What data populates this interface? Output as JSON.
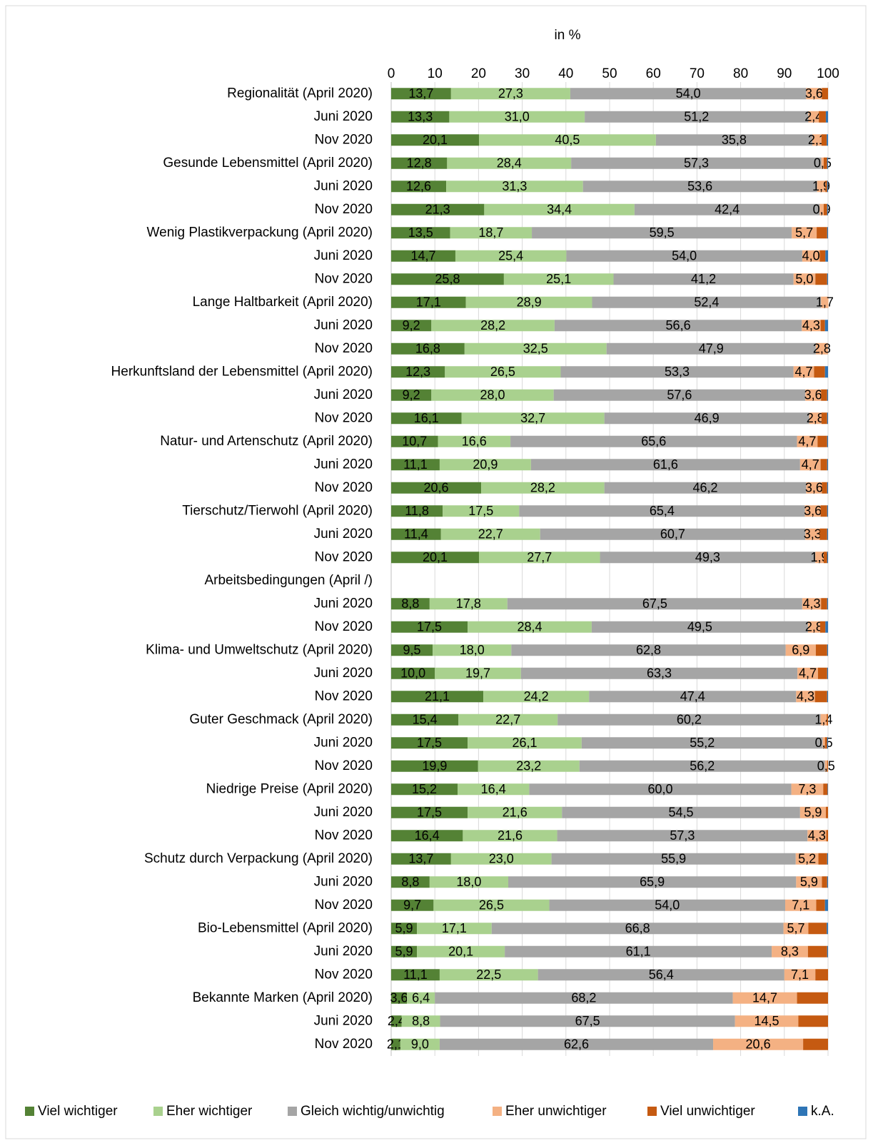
{
  "chart_data": {
    "type": "stacked-bar-horizontal",
    "axis_title": "in %",
    "categories": [
      "Regionalität (April 2020)",
      "Juni 2020",
      "Nov 2020",
      "Gesunde Lebensmittel (April 2020)",
      "Juni 2020",
      "Nov 2020",
      "Wenig Plastikverpackung (April 2020)",
      "Juni 2020",
      "Nov 2020",
      "Lange Haltbarkeit (April 2020)",
      "Juni 2020",
      "Nov 2020",
      "Herkunftsland der Lebensmittel (April 2020)",
      "Juni 2020",
      "Nov 2020",
      "Natur- und Artenschutz (April 2020)",
      "Juni 2020",
      "Nov 2020",
      "Tierschutz/Tierwohl (April 2020)",
      "Juni 2020",
      "Nov 2020",
      "Arbeitsbedingungen (April /)",
      "Juni 2020",
      "Nov 2020",
      "Klima- und Umweltschutz (April 2020)",
      "Juni 2020",
      "Nov 2020",
      "Guter Geschmack (April 2020)",
      "Juni 2020",
      "Nov 2020",
      "Niedrige Preise (April 2020)",
      "Juni 2020",
      "Nov 2020",
      "Schutz durch Verpackung (April 2020)",
      "Juni 2020",
      "Nov 2020",
      "Bio-Lebensmittel (April 2020)",
      "Juni 2020",
      "Nov 2020",
      "Bekannte Marken (April 2020)",
      "Juni 2020",
      "Nov 2020"
    ],
    "series": [
      {
        "name": "Viel wichtiger",
        "color": "#548235",
        "values": [
          13.7,
          13.3,
          20.1,
          12.8,
          12.6,
          21.3,
          13.5,
          14.7,
          25.8,
          17.1,
          9.2,
          16.8,
          12.3,
          9.2,
          16.1,
          10.7,
          11.1,
          20.6,
          11.8,
          11.4,
          20.1,
          null,
          8.8,
          17.5,
          9.5,
          10.0,
          21.1,
          15.4,
          17.5,
          19.9,
          15.2,
          17.5,
          16.4,
          13.7,
          8.8,
          9.7,
          5.9,
          5.9,
          11.1,
          3.6,
          2.4,
          2.1
        ],
        "value_labels": [
          "13,7",
          "13,3",
          "20,1",
          "12,8",
          "12,6",
          "21,3",
          "13,5",
          "14,7",
          "25,8",
          "17,1",
          "9,2",
          "16,8",
          "12,3",
          "9,2",
          "16,1",
          "10,7",
          "11,1",
          "20,6",
          "11,8",
          "11,4",
          "20,1",
          null,
          "8,8",
          "17,5",
          "9,5",
          "10,0",
          "21,1",
          "15,4",
          "17,5",
          "19,9",
          "15,2",
          "17,5",
          "16,4",
          "13,7",
          "8,8",
          "9,7",
          "5,9",
          "5,9",
          "11,1",
          "3,6",
          "2,4",
          "2,1"
        ]
      },
      {
        "name": "Eher wichtiger",
        "color": "#a9d18e",
        "values": [
          27.3,
          31.0,
          40.5,
          28.4,
          31.3,
          34.4,
          18.7,
          25.4,
          25.1,
          28.9,
          28.2,
          32.5,
          26.5,
          28.0,
          32.7,
          16.6,
          20.9,
          28.2,
          17.5,
          22.7,
          27.7,
          null,
          17.8,
          28.4,
          18.0,
          19.7,
          24.2,
          22.7,
          26.1,
          23.2,
          16.4,
          21.6,
          21.6,
          23.0,
          18.0,
          26.5,
          17.1,
          20.1,
          22.5,
          6.4,
          8.8,
          9.0
        ],
        "value_labels": [
          "27,3",
          "31,0",
          "40,5",
          "28,4",
          "31,3",
          "34,4",
          "18,7",
          "25,4",
          "25,1",
          "28,9",
          "28,2",
          "32,5",
          "26,5",
          "28,0",
          "32,7",
          "16,6",
          "20,9",
          "28,2",
          "17,5",
          "22,7",
          "27,7",
          null,
          "17,8",
          "28,4",
          "18,0",
          "19,7",
          "24,2",
          "22,7",
          "26,1",
          "23,2",
          "16,4",
          "21,6",
          "21,6",
          "23,0",
          "18,0",
          "26,5",
          "17,1",
          "20,1",
          "22,5",
          "6,4",
          "8,8",
          "9,0"
        ]
      },
      {
        "name": "Gleich wichtig/unwichtig",
        "color": "#a5a5a5",
        "values": [
          54.0,
          51.2,
          35.8,
          57.3,
          53.6,
          42.4,
          59.5,
          54.0,
          41.2,
          52.4,
          56.6,
          47.9,
          53.3,
          57.6,
          46.9,
          65.6,
          61.6,
          46.2,
          65.4,
          60.7,
          49.3,
          null,
          67.5,
          49.5,
          62.8,
          63.3,
          47.4,
          60.2,
          55.2,
          56.2,
          60.0,
          54.5,
          57.3,
          55.9,
          65.9,
          54.0,
          66.8,
          61.1,
          56.4,
          68.2,
          67.5,
          62.6
        ],
        "value_labels": [
          "54,0",
          "51,2",
          "35,8",
          "57,3",
          "53,6",
          "42,4",
          "59,5",
          "54,0",
          "41,2",
          "52,4",
          "56,6",
          "47,9",
          "53,3",
          "57,6",
          "46,9",
          "65,6",
          "61,6",
          "46,2",
          "65,4",
          "60,7",
          "49,3",
          null,
          "67,5",
          "49,5",
          "62,8",
          "63,3",
          "47,4",
          "60,2",
          "55,2",
          "56,2",
          "60,0",
          "54,5",
          "57,3",
          "55,9",
          "65,9",
          "54,0",
          "66,8",
          "61,1",
          "56,4",
          "68,2",
          "67,5",
          "62,6"
        ]
      },
      {
        "name": "Eher unwichtiger",
        "color": "#f4b183",
        "values": [
          3.6,
          2.4,
          2.1,
          0.5,
          1.9,
          0.9,
          5.7,
          4.0,
          5.0,
          1.7,
          4.3,
          2.8,
          4.7,
          3.6,
          2.8,
          4.7,
          4.7,
          3.6,
          3.6,
          3.3,
          1.9,
          null,
          4.3,
          2.8,
          6.9,
          4.7,
          4.3,
          1.4,
          0.5,
          0.5,
          7.3,
          5.9,
          4.3,
          5.2,
          5.9,
          7.1,
          5.7,
          8.3,
          7.1,
          14.7,
          14.5,
          20.6
        ],
        "value_labels": [
          "3,6",
          "2,4",
          "2,1",
          "0,5",
          "1,9",
          "0,9",
          "5,7",
          "4,0",
          "5,0",
          "1,7",
          "4,3",
          "2,8",
          "4,7",
          "3,6",
          "2,8",
          "4,7",
          "4,7",
          "3,6",
          "3,6",
          "3,3",
          "1,9",
          null,
          "4,3",
          "2,8",
          "6,9",
          "4,7",
          "4,3",
          "1,4",
          "0,5",
          "0,5",
          "7,3",
          "5,9",
          "4,3",
          "5,2",
          "5,9",
          "7,1",
          "5,7",
          "8,3",
          "7,1",
          "14,7",
          "14,5",
          "20,6"
        ]
      },
      {
        "name": "Viel unwichtiger",
        "color": "#c55a11",
        "values": [
          1.4,
          1.6,
          1.2,
          0.8,
          0.4,
          0.8,
          2.4,
          1.3,
          2.7,
          0,
          1.0,
          0,
          2.5,
          1.4,
          1.3,
          2.2,
          1.5,
          1.2,
          1.5,
          1.7,
          0.8,
          null,
          1.4,
          1.2,
          2.6,
          2.1,
          2.8,
          0.3,
          0.5,
          0.2,
          1.0,
          0.5,
          0.4,
          2.0,
          1.2,
          2.0,
          4.2,
          4.4,
          2.9,
          7.1,
          6.8,
          5.7
        ]
      },
      {
        "name": "k.A.",
        "color": "#2e75b6",
        "values": [
          0,
          0.5,
          0.3,
          0.2,
          0.2,
          0.2,
          0.2,
          0.6,
          0.2,
          0,
          0.7,
          0,
          0.7,
          0.2,
          0.2,
          0.2,
          0.2,
          0.2,
          0.2,
          0.2,
          0.2,
          null,
          0.2,
          0.6,
          0.2,
          0.2,
          0.2,
          0,
          0.2,
          0,
          0.1,
          0,
          0,
          0.2,
          0.2,
          0.7,
          0.3,
          0.2,
          0,
          0,
          0,
          0
        ]
      }
    ],
    "xlim": [
      0,
      100
    ],
    "xticks": [
      0,
      10,
      20,
      30,
      40,
      50,
      60,
      70,
      80,
      90,
      100
    ],
    "grid": true,
    "legend": "bottom"
  }
}
